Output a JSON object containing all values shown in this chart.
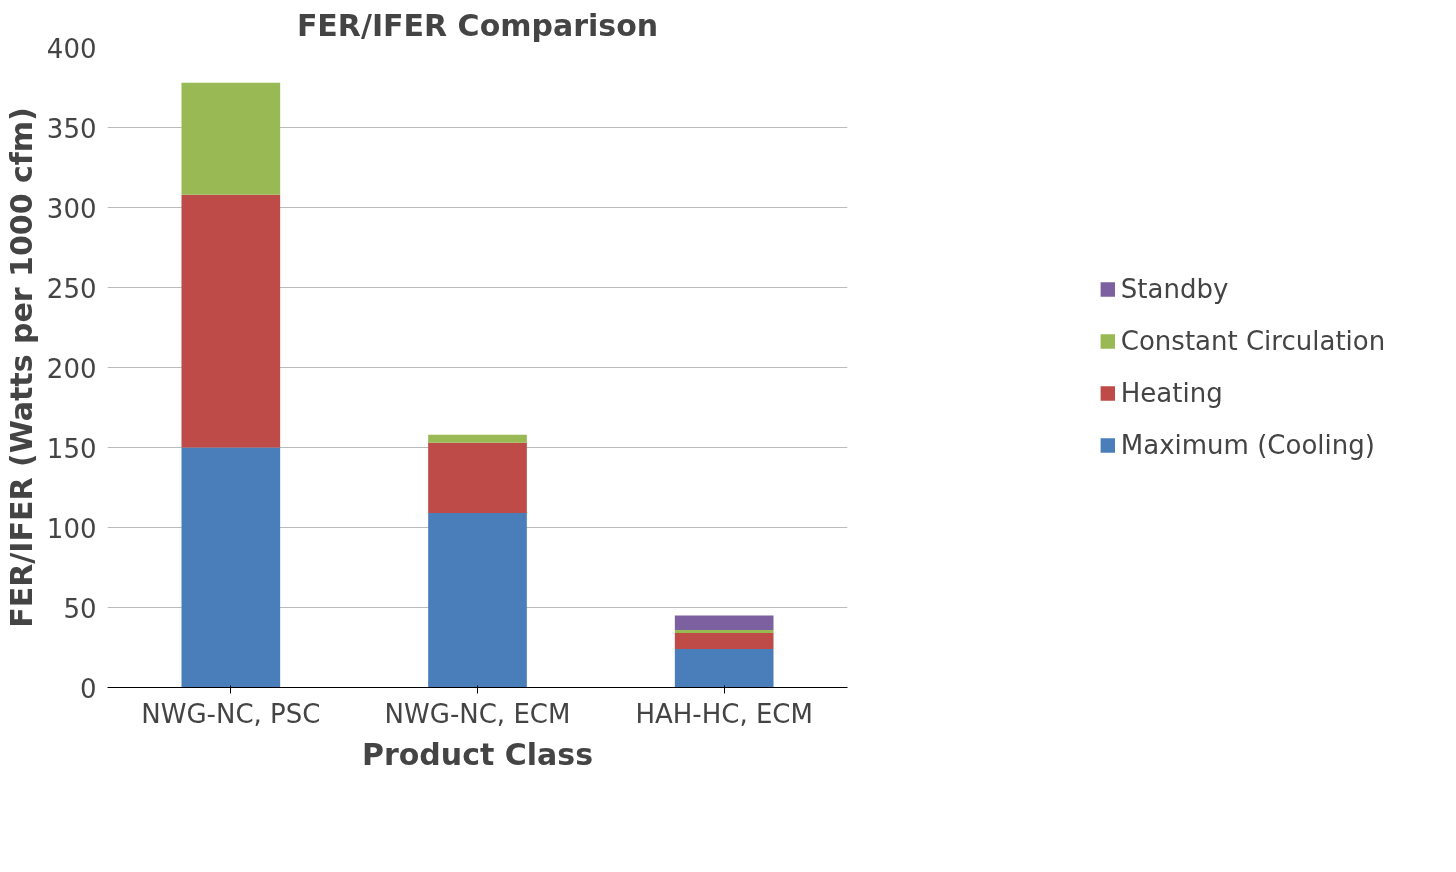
{
  "chart_data": {
    "type": "bar",
    "stacked": true,
    "title": "FER/IFER Comparison",
    "xlabel": "Product Class",
    "ylabel": "FER/IFER (Watts per 1000 cfm)",
    "categories": [
      "NWG-NC, PSC",
      "NWG-NC, ECM",
      "HAH-HC, ECM"
    ],
    "series": [
      {
        "name": "Maximum (Cooling)",
        "color": "#4a7ebb",
        "values": [
          150,
          109,
          24
        ]
      },
      {
        "name": "Heating",
        "color": "#be4b48",
        "values": [
          158,
          44,
          10
        ]
      },
      {
        "name": "Constant Circulation",
        "color": "#98b954",
        "values": [
          70,
          5,
          2
        ]
      },
      {
        "name": "Standby",
        "color": "#7d60a0",
        "values": [
          0,
          0,
          9
        ]
      }
    ],
    "ylim": [
      0,
      400
    ],
    "yticks": [
      0,
      50,
      100,
      150,
      200,
      250,
      300,
      350,
      400
    ],
    "grid": "y",
    "legend": "right"
  }
}
